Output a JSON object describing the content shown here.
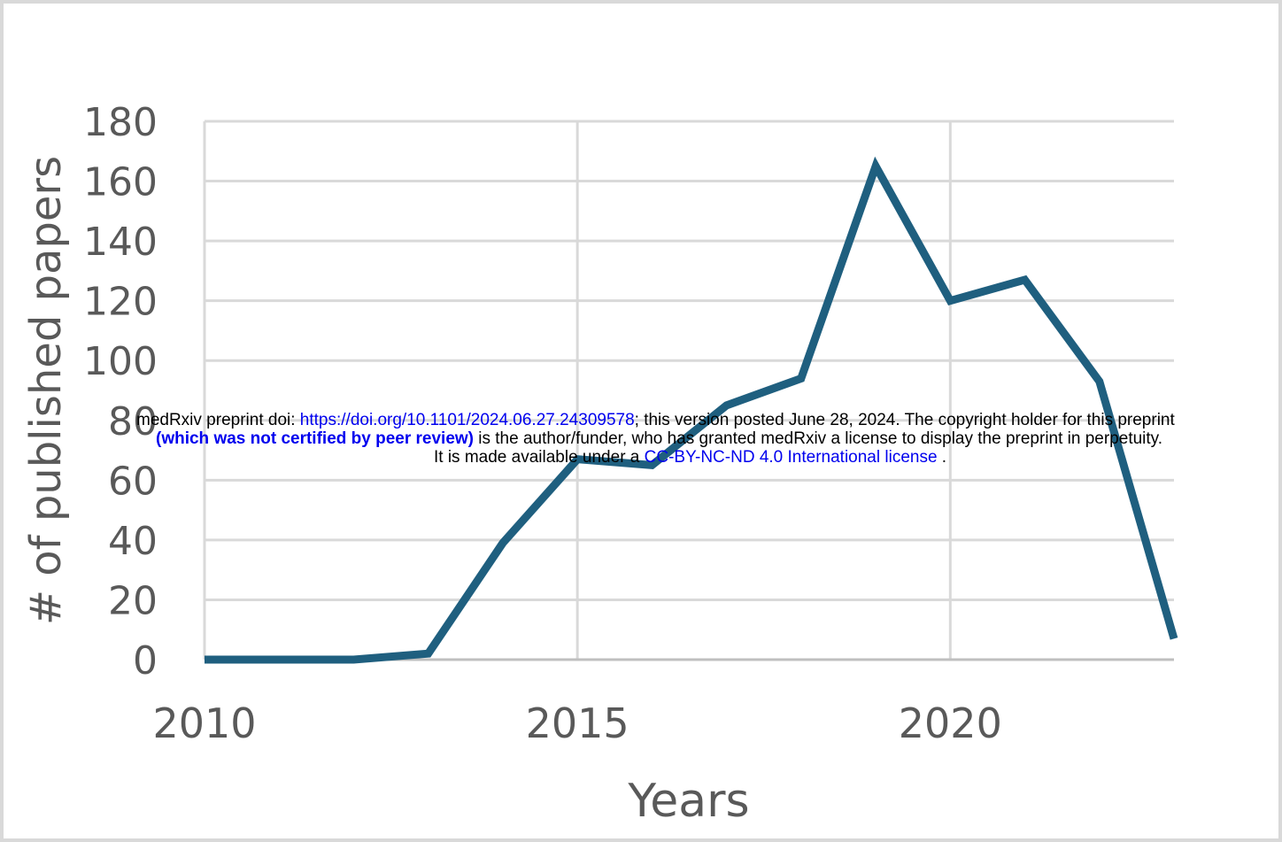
{
  "chart_data": {
    "type": "line",
    "title": "",
    "xlabel": "Years",
    "ylabel": "# of published papers",
    "xlim": [
      2010,
      2023
    ],
    "ylim": [
      0,
      180
    ],
    "x_ticks": [
      2010,
      2015,
      2020
    ],
    "y_ticks": [
      0,
      20,
      40,
      60,
      80,
      100,
      120,
      140,
      160,
      180
    ],
    "grid": true,
    "legend": "none",
    "series": [
      {
        "color": "#1f5f7f",
        "x": [
          2010,
          2011,
          2012,
          2013,
          2014,
          2015,
          2016,
          2017,
          2018,
          2019,
          2020,
          2021,
          2022,
          2023
        ],
        "y": [
          0,
          0,
          0,
          2,
          39,
          67,
          65,
          85,
          94,
          165,
          120,
          127,
          93,
          7
        ]
      }
    ]
  },
  "watermark": {
    "line1_prefix": "medRxiv preprint doi: ",
    "line1_link": "https://doi.org/10.1101/2024.06.27.24309578",
    "line1_suffix": "; this version posted June 28, 2024. The copyright holder for this preprint",
    "line2_bold": "(which was not certified by peer review)",
    "line2_suffix": " is the author/funder, who has granted medRxiv a license to display the preprint in perpetuity.",
    "line3_prefix": "It is made available under a ",
    "line3_link": "CC-BY-NC-ND 4.0 International license",
    "line3_suffix": " ."
  }
}
